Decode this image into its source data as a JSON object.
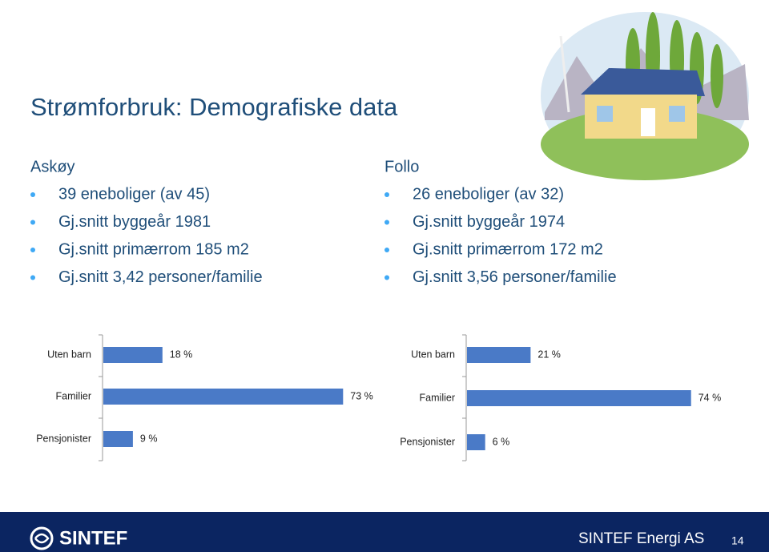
{
  "slide": {
    "title": "Strømforbruk: Demografiske data",
    "regions": [
      {
        "name": "Askøy",
        "bullets": [
          "39 eneboliger (av 45)",
          "Gj.snitt byggeår 1981",
          "Gj.snitt primærrom 185 m2",
          "Gj.snitt 3,42 personer/familie"
        ]
      },
      {
        "name": "Follo",
        "bullets": [
          "26 eneboliger (av 32)",
          "Gj.snitt byggeår 1974",
          "Gj.snitt primærrom 172 m2",
          "Gj.snitt 3,56 personer/familie"
        ]
      }
    ]
  },
  "chart_data": [
    {
      "type": "bar",
      "orientation": "horizontal",
      "categories": [
        "Uten barn",
        "Familier",
        "Pensjonister"
      ],
      "values": [
        18,
        73,
        9
      ],
      "value_labels": [
        "18 %",
        "73 %",
        "9 %"
      ],
      "color": "#4a7ac7"
    },
    {
      "type": "bar",
      "orientation": "horizontal",
      "categories": [
        "Uten barn",
        "Familier",
        "Pensjonister"
      ],
      "values": [
        21,
        74,
        6
      ],
      "value_labels": [
        "21 %",
        "74 %",
        "6 %"
      ],
      "color": "#4a7ac7"
    }
  ],
  "footer": {
    "logo": "SINTEF",
    "company": "SINTEF Energi AS",
    "page": "14"
  }
}
